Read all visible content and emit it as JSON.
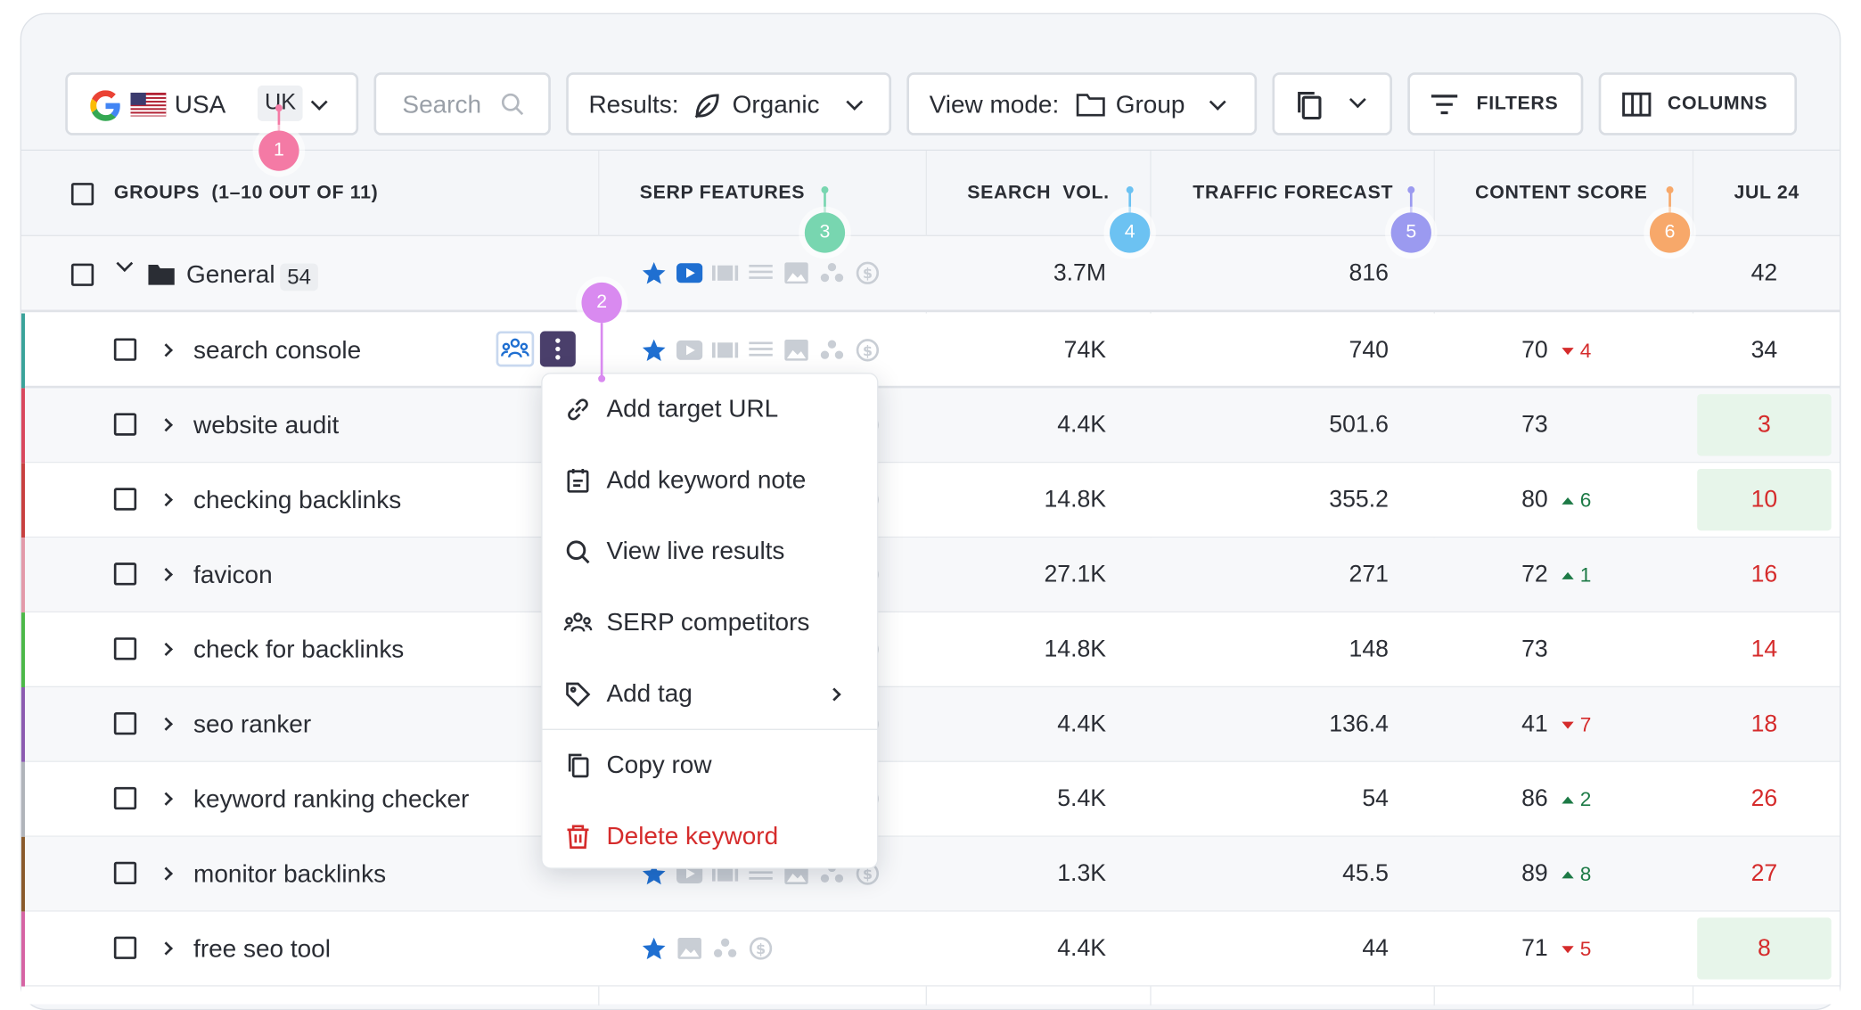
{
  "toolbar": {
    "engine": "USA",
    "location": "UK",
    "search_placeholder": "Search",
    "results_label": "Results:",
    "results_value": "Organic",
    "view_mode_label": "View mode:",
    "view_mode_value": "Group",
    "filters_label": "FILTERS",
    "columns_label": "COLUMNS"
  },
  "columns": {
    "groups": "GROUPS  (1–10 OUT OF 11)",
    "serp": "SERP FEATURES",
    "volume": "SEARCH  VOL.",
    "traffic": "TRAFFIC FORECAST",
    "content": "CONTENT SCORE",
    "date": "JUL 24"
  },
  "group": {
    "name": "General",
    "count": "54",
    "volume": "3.7M",
    "traffic": "816",
    "date_value": "42"
  },
  "rows": [
    {
      "keyword": "search console",
      "volume": "74K",
      "traffic": "740",
      "score": "70",
      "delta": "4",
      "dir": "down",
      "jul": "34",
      "bar": "#3aa39a"
    },
    {
      "keyword": "website audit",
      "volume": "4.4K",
      "traffic": "501.6",
      "score": "73",
      "delta": "",
      "dir": "",
      "jul": "3",
      "bar": "#d9475d"
    },
    {
      "keyword": "checking backlinks",
      "volume": "14.8K",
      "traffic": "355.2",
      "score": "80",
      "delta": "6",
      "dir": "up",
      "jul": "10",
      "bar": "#c8403f"
    },
    {
      "keyword": "favicon",
      "volume": "27.1K",
      "traffic": "271",
      "score": "72",
      "delta": "1",
      "dir": "up",
      "jul": "16",
      "bar": "#e39aa9"
    },
    {
      "keyword": "check for backlinks",
      "volume": "14.8K",
      "traffic": "148",
      "score": "73",
      "delta": "",
      "dir": "",
      "jul": "14",
      "bar": "#4cb848"
    },
    {
      "keyword": "seo ranker",
      "volume": "4.4K",
      "traffic": "136.4",
      "score": "41",
      "delta": "7",
      "dir": "down",
      "jul": "18",
      "bar": "#8c5bb0"
    },
    {
      "keyword": "keyword ranking checker",
      "volume": "5.4K",
      "traffic": "54",
      "score": "86",
      "delta": "2",
      "dir": "up",
      "jul": "26",
      "bar": "#b0b4ba"
    },
    {
      "keyword": "monitor backlinks",
      "volume": "1.3K",
      "traffic": "45.5",
      "score": "89",
      "delta": "8",
      "dir": "up",
      "jul": "27",
      "bar": "#8a5a2b"
    },
    {
      "keyword": "free seo tool",
      "volume": "4.4K",
      "traffic": "44",
      "score": "71",
      "delta": "5",
      "dir": "down",
      "jul": "8",
      "bar": "#d664a4"
    }
  ],
  "context_menu": [
    {
      "label": "Add target URL",
      "icon": "link-icon"
    },
    {
      "label": "Add keyword note",
      "icon": "note-icon"
    },
    {
      "label": "View live results",
      "icon": "search-icon"
    },
    {
      "label": "SERP competitors",
      "icon": "competitors-icon"
    },
    {
      "label": "Add tag",
      "icon": "tag-icon"
    },
    {
      "label": "Copy row",
      "icon": "copy-icon"
    },
    {
      "label": "Delete keyword",
      "icon": "trash-icon"
    }
  ],
  "markers": [
    "1",
    "2",
    "3",
    "4",
    "5",
    "6"
  ],
  "colors": {
    "marker1": "#f47aa5",
    "marker2": "#d98af0",
    "marker3": "#78d6b0",
    "marker4": "#6cc2f2",
    "marker5": "#9b9af0",
    "marker6": "#f7a86a",
    "accent_blue": "#1f6fd1",
    "delete_red": "#d52b2b"
  }
}
